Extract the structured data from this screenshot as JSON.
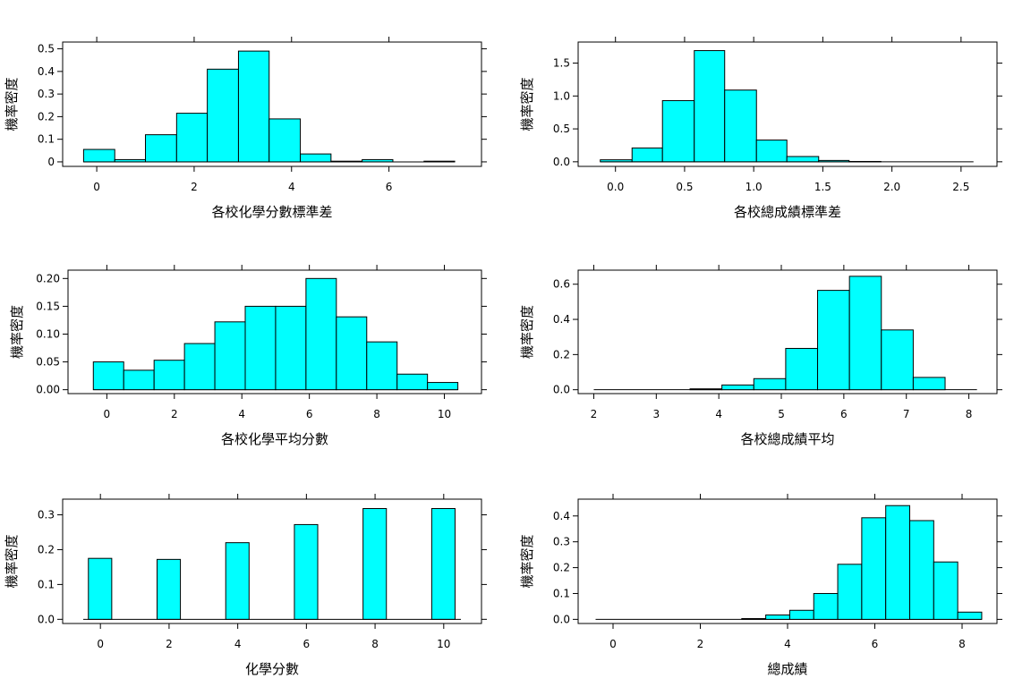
{
  "chart_data": [
    {
      "type": "bar",
      "xlabel": "各校化學分數標準差",
      "ylabel": "機率密度",
      "xticks": [
        0,
        2,
        4,
        6
      ],
      "yticks": [
        0.0,
        0.1,
        0.2,
        0.3,
        0.4,
        0.5
      ],
      "xlim": [
        -0.7,
        7.9
      ],
      "ylim": [
        -0.02,
        0.53
      ],
      "bins": [
        {
          "x0": -0.27,
          "x1": 0.37,
          "density": 0.055
        },
        {
          "x0": 0.37,
          "x1": 1.0,
          "density": 0.01
        },
        {
          "x0": 1.0,
          "x1": 1.64,
          "density": 0.12
        },
        {
          "x0": 1.64,
          "x1": 2.27,
          "density": 0.215
        },
        {
          "x0": 2.27,
          "x1": 2.91,
          "density": 0.41
        },
        {
          "x0": 2.91,
          "x1": 3.54,
          "density": 0.49
        },
        {
          "x0": 3.54,
          "x1": 4.18,
          "density": 0.19
        },
        {
          "x0": 4.18,
          "x1": 4.81,
          "density": 0.035
        },
        {
          "x0": 4.81,
          "x1": 5.45,
          "density": 0.003
        },
        {
          "x0": 5.45,
          "x1": 6.08,
          "density": 0.01
        },
        {
          "x0": 6.08,
          "x1": 6.72,
          "density": 0.0
        },
        {
          "x0": 6.72,
          "x1": 7.35,
          "density": 0.003
        }
      ]
    },
    {
      "type": "bar",
      "xlabel": "各校總成績標準差",
      "ylabel": "機率密度",
      "xticks": [
        0.0,
        0.5,
        1.0,
        1.5,
        2.0,
        2.5
      ],
      "xtick_labels": [
        "0.0",
        "0.5",
        "1.0",
        "1.5",
        "2.0",
        "2.5"
      ],
      "yticks": [
        0.0,
        0.5,
        1.0,
        1.5
      ],
      "xtick_labels_y": [
        "0.0",
        "0.5",
        "1.0",
        "1.5"
      ],
      "xlim": [
        -0.27,
        2.76
      ],
      "ylim": [
        -0.07,
        1.82
      ],
      "bins": [
        {
          "x0": -0.11,
          "x1": 0.12,
          "density": 0.03
        },
        {
          "x0": 0.12,
          "x1": 0.34,
          "density": 0.21
        },
        {
          "x0": 0.34,
          "x1": 0.57,
          "density": 0.93
        },
        {
          "x0": 0.57,
          "x1": 0.79,
          "density": 1.69
        },
        {
          "x0": 0.79,
          "x1": 1.02,
          "density": 1.09
        },
        {
          "x0": 1.02,
          "x1": 1.24,
          "density": 0.33
        },
        {
          "x0": 1.24,
          "x1": 1.47,
          "density": 0.08
        },
        {
          "x0": 1.47,
          "x1": 1.69,
          "density": 0.02
        },
        {
          "x0": 1.69,
          "x1": 1.92,
          "density": 0.005
        },
        {
          "x0": 1.92,
          "x1": 2.14,
          "density": 0.0
        },
        {
          "x0": 2.14,
          "x1": 2.37,
          "density": 0.0
        },
        {
          "x0": 2.37,
          "x1": 2.59,
          "density": 0.0
        }
      ]
    },
    {
      "type": "bar",
      "xlabel": "各校化學平均分數",
      "ylabel": "機率密度",
      "xticks": [
        0,
        2,
        4,
        6,
        8,
        10
      ],
      "yticks": [
        0.0,
        0.05,
        0.1,
        0.15,
        0.2
      ],
      "ytick_labels": [
        "0.00",
        "0.05",
        "0.10",
        "0.15",
        "0.20"
      ],
      "xlim": [
        -1.15,
        11.1
      ],
      "ylim": [
        -0.007,
        0.215
      ],
      "bins": [
        {
          "x0": -0.4,
          "x1": 0.5,
          "density": 0.05
        },
        {
          "x0": 0.5,
          "x1": 1.4,
          "density": 0.035
        },
        {
          "x0": 1.4,
          "x1": 2.3,
          "density": 0.053
        },
        {
          "x0": 2.3,
          "x1": 3.2,
          "density": 0.083
        },
        {
          "x0": 3.2,
          "x1": 4.1,
          "density": 0.122
        },
        {
          "x0": 4.1,
          "x1": 5.0,
          "density": 0.15
        },
        {
          "x0": 5.0,
          "x1": 5.9,
          "density": 0.15
        },
        {
          "x0": 5.9,
          "x1": 6.8,
          "density": 0.2
        },
        {
          "x0": 6.8,
          "x1": 7.7,
          "density": 0.131
        },
        {
          "x0": 7.7,
          "x1": 8.6,
          "density": 0.086
        },
        {
          "x0": 8.6,
          "x1": 9.5,
          "density": 0.028
        },
        {
          "x0": 9.5,
          "x1": 10.4,
          "density": 0.013
        }
      ]
    },
    {
      "type": "bar",
      "xlabel": "各校總成績平均",
      "ylabel": "機率密度",
      "xticks": [
        2,
        3,
        4,
        5,
        6,
        7,
        8
      ],
      "yticks": [
        0.0,
        0.2,
        0.4,
        0.6
      ],
      "ytick_labels": [
        "0.0",
        "0.2",
        "0.4",
        "0.6"
      ],
      "xlim": [
        1.75,
        8.45
      ],
      "ylim": [
        -0.022,
        0.68
      ],
      "bins": [
        {
          "x0": 2.0,
          "x1": 2.51,
          "density": 0.0
        },
        {
          "x0": 2.51,
          "x1": 3.02,
          "density": 0.0
        },
        {
          "x0": 3.02,
          "x1": 3.54,
          "density": 0.0
        },
        {
          "x0": 3.54,
          "x1": 4.05,
          "density": 0.005
        },
        {
          "x0": 4.05,
          "x1": 4.56,
          "density": 0.027
        },
        {
          "x0": 4.56,
          "x1": 5.07,
          "density": 0.063
        },
        {
          "x0": 5.07,
          "x1": 5.58,
          "density": 0.235
        },
        {
          "x0": 5.58,
          "x1": 6.09,
          "density": 0.565
        },
        {
          "x0": 6.09,
          "x1": 6.6,
          "density": 0.645
        },
        {
          "x0": 6.6,
          "x1": 7.11,
          "density": 0.34
        },
        {
          "x0": 7.11,
          "x1": 7.62,
          "density": 0.07
        },
        {
          "x0": 7.62,
          "x1": 8.13,
          "density": 0.0
        }
      ]
    },
    {
      "type": "bar",
      "xlabel": "化學分數",
      "ylabel": "機率密度",
      "xticks": [
        0,
        2,
        4,
        6,
        8,
        10
      ],
      "yticks": [
        0.0,
        0.1,
        0.2,
        0.3
      ],
      "ytick_labels": [
        "0.0",
        "0.1",
        "0.2",
        "0.3"
      ],
      "xlim": [
        -1.1,
        11.1
      ],
      "ylim": [
        -0.012,
        0.345
      ],
      "bins": [
        {
          "x0": -0.35,
          "x1": 0.33,
          "density": 0.175
        },
        {
          "x0": 1.65,
          "x1": 2.33,
          "density": 0.172
        },
        {
          "x0": 3.65,
          "x1": 4.33,
          "density": 0.22
        },
        {
          "x0": 5.65,
          "x1": 6.33,
          "density": 0.272
        },
        {
          "x0": 7.65,
          "x1": 8.33,
          "density": 0.318
        },
        {
          "x0": 9.65,
          "x1": 10.33,
          "density": 0.318
        }
      ],
      "baseline": [
        -0.5,
        10.5
      ]
    },
    {
      "type": "bar",
      "xlabel": "總成績",
      "ylabel": "機率密度",
      "xticks": [
        0,
        2,
        4,
        6,
        8
      ],
      "yticks": [
        0.0,
        0.1,
        0.2,
        0.3,
        0.4
      ],
      "ytick_labels": [
        "0.0",
        "0.1",
        "0.2",
        "0.3",
        "0.4"
      ],
      "xlim": [
        -0.8,
        8.8
      ],
      "ylim": [
        -0.016,
        0.465
      ],
      "bins": [
        {
          "x0": 2.95,
          "x1": 3.5,
          "density": 0.003
        },
        {
          "x0": 3.5,
          "x1": 4.05,
          "density": 0.017
        },
        {
          "x0": 4.05,
          "x1": 4.6,
          "density": 0.035
        },
        {
          "x0": 4.6,
          "x1": 5.15,
          "density": 0.1
        },
        {
          "x0": 5.15,
          "x1": 5.7,
          "density": 0.213
        },
        {
          "x0": 5.7,
          "x1": 6.25,
          "density": 0.393
        },
        {
          "x0": 6.25,
          "x1": 6.8,
          "density": 0.44
        },
        {
          "x0": 6.8,
          "x1": 7.35,
          "density": 0.382
        },
        {
          "x0": 7.35,
          "x1": 7.9,
          "density": 0.222
        },
        {
          "x0": 7.9,
          "x1": 8.45,
          "density": 0.028
        }
      ],
      "baseline": [
        -0.4,
        8.45
      ]
    }
  ]
}
